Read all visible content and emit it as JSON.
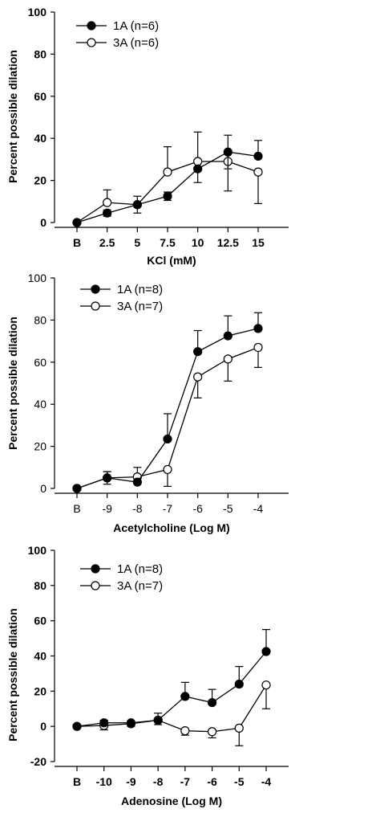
{
  "chart_data": [
    {
      "type": "line",
      "xlabel": "KCl (mM)",
      "ylabel": "Percent possible dilation",
      "ylim": [
        0,
        100
      ],
      "yticks": [
        "0",
        "20",
        "40",
        "60",
        "80",
        "100"
      ],
      "categories": [
        "B",
        "2.5",
        "5",
        "7.5",
        "10",
        "12.5",
        "15"
      ],
      "tick_bold": true,
      "legend_position": "top-left",
      "series": [
        {
          "name": "1A (n=6)",
          "marker": "filled",
          "values": [
            0,
            4.5,
            8.5,
            12.5,
            25.5,
            33.5,
            31.5
          ],
          "error": [
            0,
            1.5,
            0,
            2,
            6.5,
            8,
            7.5
          ],
          "error_side": [
            "none",
            "both",
            "none",
            "both",
            "down",
            "both",
            "up"
          ]
        },
        {
          "name": "3A (n=6)",
          "marker": "open",
          "values": [
            0,
            9.5,
            8.5,
            24,
            29,
            29,
            24
          ],
          "error": [
            0,
            6,
            4,
            12,
            14,
            14,
            15
          ],
          "error_side": [
            "none",
            "up",
            "both",
            "up",
            "up",
            "down",
            "down"
          ]
        }
      ]
    },
    {
      "type": "line",
      "xlabel": "Acetylcholine (Log M)",
      "ylabel": "Percent possible dilation",
      "ylim": [
        0,
        100
      ],
      "yticks": [
        "0",
        "20",
        "40",
        "60",
        "80",
        "100"
      ],
      "categories": [
        "B",
        "-9",
        "-8",
        "-7",
        "-6",
        "-5",
        "-4"
      ],
      "tick_bold": false,
      "legend_position": "top-left",
      "series": [
        {
          "name": "1A (n=8)",
          "marker": "filled",
          "values": [
            0,
            5,
            3,
            23.5,
            65,
            72.5,
            76
          ],
          "error": [
            0,
            3,
            0,
            12,
            10,
            9.5,
            7.5
          ],
          "error_side": [
            "none",
            "up",
            "none",
            "up",
            "up",
            "up",
            "up"
          ]
        },
        {
          "name": "3A (n=7)",
          "marker": "open",
          "values": [
            0,
            5,
            5.5,
            9,
            53,
            61.5,
            67
          ],
          "error": [
            0,
            3,
            4.5,
            8,
            10,
            10.5,
            9.5
          ],
          "error_side": [
            "none",
            "both",
            "up",
            "down",
            "down",
            "down",
            "down"
          ]
        }
      ]
    },
    {
      "type": "line",
      "xlabel": "Adenosine (Log M)",
      "ylabel": "Percent possible dilation",
      "ylim": [
        -20,
        100
      ],
      "yticks": [
        "-20",
        "0",
        "20",
        "40",
        "60",
        "80",
        "100"
      ],
      "categories": [
        "B",
        "-10",
        "-9",
        "-8",
        "-7",
        "-6",
        "-5",
        "-4"
      ],
      "tick_bold": true,
      "legend_position": "top-left",
      "series": [
        {
          "name": "1A (n=8)",
          "marker": "filled",
          "values": [
            0,
            2,
            2,
            3.5,
            17,
            13.5,
            24,
            42.5
          ],
          "error": [
            0,
            1.5,
            1,
            4,
            8,
            7.5,
            10,
            12.5
          ],
          "error_side": [
            "none",
            "up",
            "up",
            "up",
            "up",
            "up",
            "up",
            "up"
          ]
        },
        {
          "name": "3A (n=7)",
          "marker": "open",
          "values": [
            0,
            0.5,
            1.5,
            3.5,
            -2.5,
            -3,
            -1,
            23.5
          ],
          "error": [
            0,
            2.5,
            1.5,
            2.5,
            2.5,
            3.5,
            10,
            13.5
          ],
          "error_side": [
            "none",
            "down",
            "down",
            "down",
            "down",
            "down",
            "down",
            "down"
          ]
        }
      ]
    }
  ]
}
